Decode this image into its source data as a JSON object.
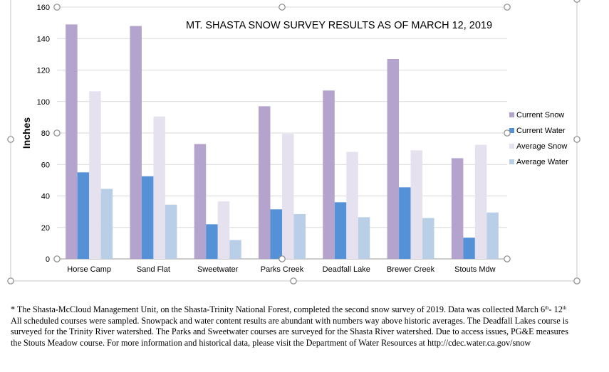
{
  "chart_data": {
    "type": "bar",
    "title": "MT. SHASTA SNOW SURVEY RESULTS AS OF MARCH 12, 2019",
    "ylabel": "Inches",
    "xlabel": "",
    "ylim": [
      0,
      160
    ],
    "yticks": [
      "0",
      "20",
      "40",
      "60",
      "80",
      "100",
      "120",
      "140",
      "160"
    ],
    "grid": true,
    "legend_position": "right",
    "categories": [
      "Horse Camp",
      "Sand Flat",
      "Sweetwater",
      "Parks Creek",
      "Deadfall Lake",
      "Brewer Creek",
      "Stouts Mdw"
    ],
    "series": [
      {
        "name": "Current Snow",
        "color": "#b4a3cc",
        "values": [
          149,
          148,
          73,
          97,
          107,
          127,
          64
        ]
      },
      {
        "name": "Current Water",
        "color": "#5591d6",
        "values": [
          55,
          52.5,
          22,
          31.5,
          36,
          45.5,
          13.5
        ]
      },
      {
        "name": "Average Snow",
        "color": "#e6e1ef",
        "values": [
          106.5,
          90.5,
          36.5,
          79.5,
          68,
          69,
          72.5
        ]
      },
      {
        "name": "Average Water",
        "color": "#b9cfe8",
        "values": [
          44.5,
          34.5,
          12,
          28.5,
          26.5,
          26,
          29.5
        ]
      }
    ]
  },
  "footnote": {
    "star": "*",
    "line1_a": "The Shasta-McCloud Management Unit, on the Shasta-Trinity National Forest, completed the second snow survey of 2019. Data was collected March 6",
    "line1_sup1": "th",
    "line1_b": "- 12",
    "line1_sup2": "th",
    "line2": "All scheduled courses were sampled. Snowpack and water content results are abundant with numbers way above historic averages. The Deadfall Lakes course is",
    "line3": "surveyed for the Trinity River watershed. The Parks and Sweetwater courses are surveyed for the Shasta River watershed. Due to access issues, PG&E measures",
    "line4": "the Stouts Meadow course. For more information and historical data, please visit the Department of Water Resources at http://cdec.water.ca.gov/snow"
  }
}
